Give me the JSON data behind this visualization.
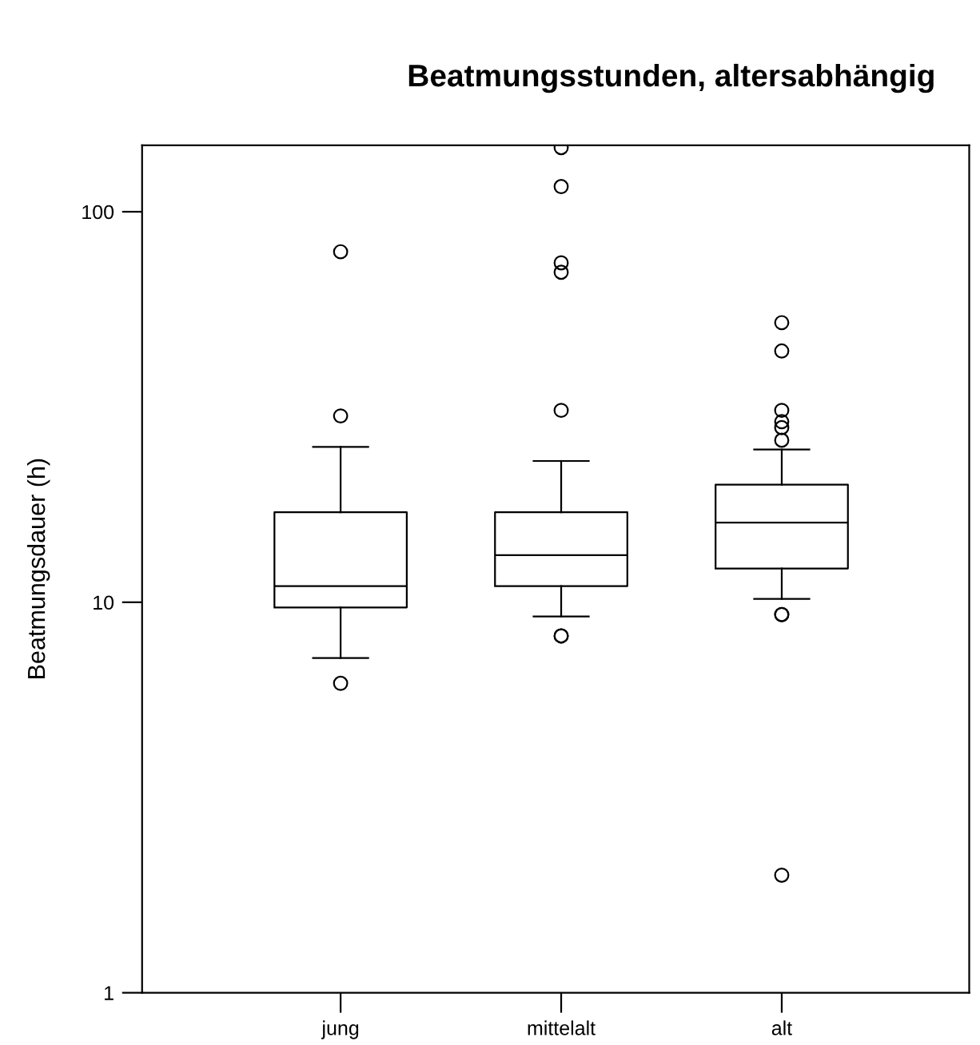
{
  "chart_data": {
    "type": "box",
    "title": "Beatmungsstunden, altersabhängig",
    "ylabel": "Beatmungsdauer (h)",
    "categories": [
      "jung",
      "mittelalt",
      "alt"
    ],
    "boxes": [
      {
        "low": 7.2,
        "q1": 9.7,
        "median": 11,
        "q3": 17,
        "high": 25,
        "outliers": [
          6.2,
          30,
          79
        ]
      },
      {
        "low": 9.2,
        "q1": 11,
        "median": 13.2,
        "q3": 17,
        "high": 23,
        "outliers": [
          8.2,
          8.2,
          31,
          70,
          74,
          116,
          146
        ]
      },
      {
        "low": 10.2,
        "q1": 12.2,
        "median": 16,
        "q3": 20,
        "high": 24.6,
        "outliers": [
          2,
          9.3,
          9.3,
          26,
          28,
          29,
          31,
          44,
          52
        ]
      }
    ],
    "log": "y",
    "ylim": [
      1,
      148
    ],
    "yticks": [
      1,
      10,
      100
    ],
    "grid": false,
    "marker": "circle"
  }
}
